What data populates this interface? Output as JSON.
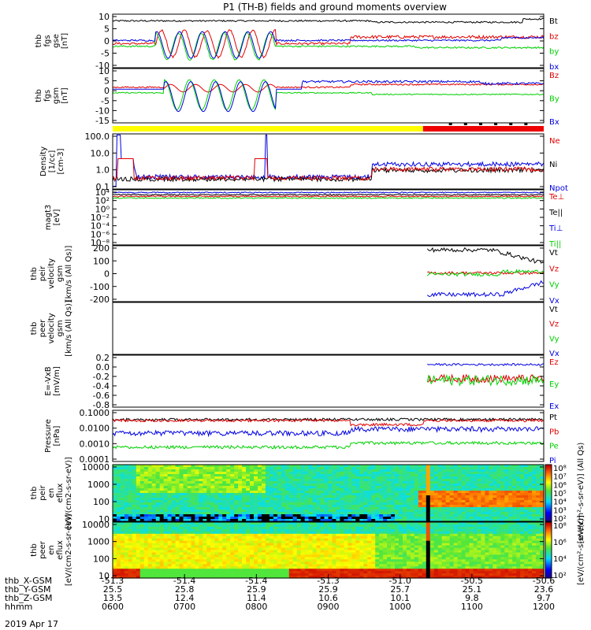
{
  "title": "P1 (TH-B) fields and ground moments overview",
  "date_label": "2019 Apr 17",
  "colors": {
    "black": "#000000",
    "red": "#e00000",
    "green": "#00d000",
    "blue": "#0000e0",
    "yellow": "#ffff00",
    "bar_red": "#ee0000"
  },
  "chart_data": {
    "type": "line",
    "x_axis": {
      "time_label": "hhmm",
      "time_ticks": [
        "0600",
        "0700",
        "0800",
        "0900",
        "1000",
        "1100",
        "1200"
      ],
      "aux_rows": [
        {
          "label": "thb_X-GSM",
          "values": [
            "-51.3",
            "-51.4",
            "-51.4",
            "-51.3",
            "-51.0",
            "-50.5",
            "-50.6"
          ]
        },
        {
          "label": "thb_Y-GSM",
          "values": [
            "25.5",
            "25.8",
            "25.9",
            "25.9",
            "25.7",
            "25.1",
            "23.6"
          ]
        },
        {
          "label": "thb_Z-GSM",
          "values": [
            "13.5",
            "12.4",
            "11.4",
            "10.6",
            "10.1",
            "9.8",
            "9.7"
          ]
        }
      ]
    },
    "panels": [
      {
        "id": "fgs_gse",
        "ylabel": [
          "thb",
          "fgs",
          "gse",
          "[nT]"
        ],
        "yticks": [
          "10",
          "5",
          "0",
          "-5",
          "-10"
        ],
        "ylim": [
          -10,
          10
        ],
        "legend": [
          {
            "name": "Bt",
            "color": "black"
          },
          {
            "name": "bz",
            "color": "red"
          },
          {
            "name": "by",
            "color": "green"
          },
          {
            "name": "bx",
            "color": "blue"
          }
        ]
      },
      {
        "id": "fgs_gsm",
        "ylabel": [
          "thb",
          "fgs",
          "gsm",
          "[nT]"
        ],
        "yticks": [
          "10",
          "5",
          "0",
          "-5",
          "-10",
          "-15"
        ],
        "ylim": [
          -17,
          12
        ],
        "legend": [
          {
            "name": "Bz",
            "color": "red"
          },
          {
            "name": "By",
            "color": "green"
          },
          {
            "name": "Bx",
            "color": "blue"
          }
        ]
      },
      {
        "id": "density",
        "ylabel": [
          "Density",
          "[1/cc]",
          "[cm-3]"
        ],
        "yticks": [
          "100.0",
          "10.0",
          "1.0",
          "0.1"
        ],
        "scale": "log",
        "legend": [
          {
            "name": "Ne",
            "color": "red"
          },
          {
            "name": "Ni",
            "color": "black"
          },
          {
            "name": "Npot",
            "color": "blue"
          }
        ]
      },
      {
        "id": "temperature",
        "ylabel": [
          "magt3",
          "[eV]"
        ],
        "yticks": [
          "10⁴",
          "10²",
          "10⁰",
          "10⁻²",
          "10⁻⁴",
          "10⁻⁶",
          "10⁻⁸"
        ],
        "scale": "log",
        "legend": [
          {
            "name": "Te⊥",
            "color": "red"
          },
          {
            "name": "Te||",
            "color": "black"
          },
          {
            "name": "Ti⊥",
            "color": "blue"
          },
          {
            "name": "Ti||",
            "color": "green"
          }
        ]
      },
      {
        "id": "peir_velocity",
        "ylabel": [
          "thb",
          "peir",
          "velocity",
          "gsm",
          "[km/s (All Qs)]"
        ],
        "yticks": [
          "200",
          "100",
          "0",
          "-100",
          "-200"
        ],
        "ylim": [
          -200,
          200
        ],
        "legend": [
          {
            "name": "Vt",
            "color": "black"
          },
          {
            "name": "Vz",
            "color": "red"
          },
          {
            "name": "Vy",
            "color": "green"
          },
          {
            "name": "Vx",
            "color": "blue"
          }
        ]
      },
      {
        "id": "peer_velocity",
        "ylabel": [
          "thb",
          "peer",
          "velocity",
          "gsm",
          "[km/s (All Qs)]"
        ],
        "yticks": [],
        "legend": [
          {
            "name": "Vt",
            "color": "black"
          },
          {
            "name": "Vz",
            "color": "red"
          },
          {
            "name": "Vy",
            "color": "green"
          },
          {
            "name": "Vx",
            "color": "blue"
          }
        ]
      },
      {
        "id": "efield",
        "ylabel": [
          "E=-VxB",
          "[mV/m]"
        ],
        "yticks": [
          "0.2",
          "0.0",
          "-0.2",
          "-0.4",
          "-0.6",
          "-0.8"
        ],
        "ylim": [
          -0.8,
          0.2
        ],
        "legend": [
          {
            "name": "Ez",
            "color": "red"
          },
          {
            "name": "Ey",
            "color": "green"
          },
          {
            "name": "Ex",
            "color": "blue"
          }
        ]
      },
      {
        "id": "pressure",
        "ylabel": [
          "Pressure",
          "[nPa]"
        ],
        "yticks": [
          "0.1000",
          "0.0100",
          "0.0010",
          "0.0001"
        ],
        "scale": "log",
        "legend": [
          {
            "name": "Pt",
            "color": "black"
          },
          {
            "name": "Pb",
            "color": "red"
          },
          {
            "name": "Pe",
            "color": "green"
          },
          {
            "name": "Pi",
            "color": "blue"
          }
        ]
      },
      {
        "id": "peir_eflux",
        "ylabel": [
          "thb",
          "peir",
          "en",
          "eflux",
          "[eV/(cm2-s-sr-eV)]"
        ],
        "yticks": [
          "10000",
          "1000",
          "100",
          "10"
        ],
        "type": "heatmap",
        "colorbar_label": "[eV/(cm²-s-sr-eV)] (All Qs)",
        "colorbar_ticks": [
          "10⁸",
          "10⁷",
          "10⁶",
          "10⁵",
          "10⁴",
          "10³",
          "10²"
        ]
      },
      {
        "id": "peer_eflux",
        "ylabel": [
          "thb",
          "peer",
          "en",
          "eflux",
          "[eV/(cm2-s-sr-eV)]"
        ],
        "yticks": [
          "10000",
          "1000",
          "100",
          "10"
        ],
        "type": "heatmap",
        "colorbar_label": "[eV/(cm²-s-sr-eV)]",
        "colorbar_ticks": [
          "10⁸",
          "10⁶",
          "10⁴",
          "10²"
        ]
      }
    ]
  }
}
